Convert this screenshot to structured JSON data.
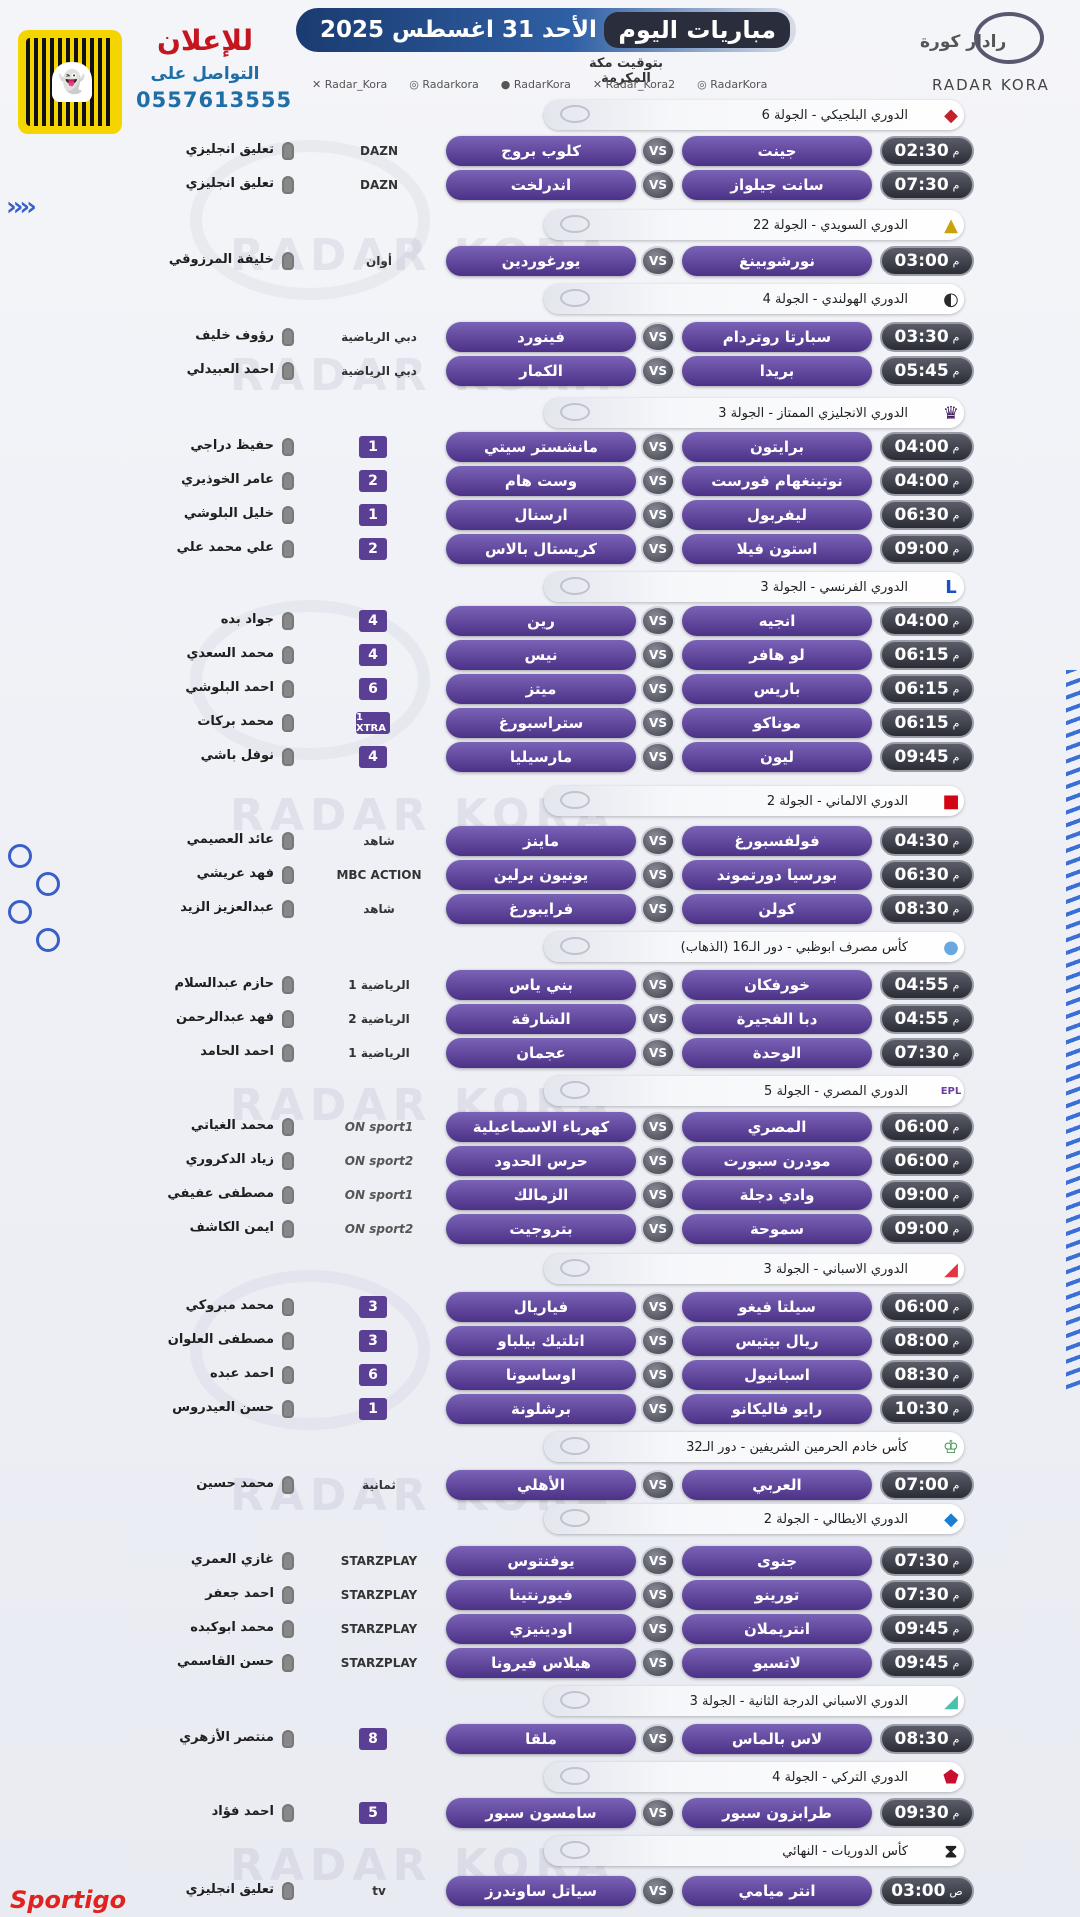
{
  "header": {
    "title": "مباريات اليوم",
    "date": "الأحد 31 اغسطس 2025",
    "timezone": "بتوقيت مكة المكرمة",
    "socials": [
      "Radar_Kora",
      "Radarkora",
      "RadarKora",
      "Radar_Kora2",
      "RadarKora"
    ]
  },
  "brand": {
    "arabic": "رادار كورة",
    "latin": "RADAR KORA",
    "watermark": "RADAR KORA",
    "watermark_ar": "رادار كورة"
  },
  "ad": {
    "title": "للإعلان",
    "subtitle": "التواصل على",
    "phone": "0557613555"
  },
  "footer_brand": "Sportigo",
  "colors": {
    "team_pill": "#5b3f98",
    "time_pill": "#33353e",
    "title_bar": "#1a3b70",
    "ad_red": "#c5151e",
    "ad_blue": "#1f6fa6"
  },
  "vs_label": "VS",
  "time_suffix_pm": "م",
  "time_suffix_am": "ص",
  "sections": [
    {
      "league": "الدوري البلجيكي - الجولة 6",
      "icon": "belgian-league-icon",
      "matches": [
        {
          "time": "02:30",
          "suffix": "م",
          "home": "جينت",
          "away": "كلوب بروج",
          "channel": "DAZN",
          "commentator": "تعليق انجليزي"
        },
        {
          "time": "07:30",
          "suffix": "م",
          "home": "سانت جيلواز",
          "away": "اندرلخت",
          "channel": "DAZN",
          "commentator": "تعليق انجليزي"
        }
      ]
    },
    {
      "league": "الدوري السويدي - الجولة 22",
      "icon": "swedish-league-icon",
      "matches": [
        {
          "time": "03:00",
          "suffix": "م",
          "home": "نورشوبينغ",
          "away": "يورغوردين",
          "channel": "أوان",
          "commentator": "خليفة المرزوقي"
        }
      ]
    },
    {
      "league": "الدوري الهولندي - الجولة 4",
      "icon": "eredivisie-icon",
      "matches": [
        {
          "time": "03:30",
          "suffix": "م",
          "home": "سبارتا روتردام",
          "away": "فينورد",
          "channel": "دبي الرياضية",
          "commentator": "رؤوف خليف"
        },
        {
          "time": "05:45",
          "suffix": "م",
          "home": "بريدا",
          "away": "الكمار",
          "channel": "دبي الرياضية",
          "commentator": "احمد العبيدلي"
        }
      ]
    },
    {
      "league": "الدوري الانجليزي الممتاز - الجولة 3",
      "icon": "premier-league-icon",
      "matches": [
        {
          "time": "04:00",
          "suffix": "م",
          "home": "برايتون",
          "away": "مانشستر سيتي",
          "channel": "1",
          "commentator": "حفيظ دراجي"
        },
        {
          "time": "04:00",
          "suffix": "م",
          "home": "نوتينغهام فورست",
          "away": "وست هام",
          "channel": "2",
          "commentator": "عامر الخوذيري"
        },
        {
          "time": "06:30",
          "suffix": "م",
          "home": "ليفربول",
          "away": "ارسنال",
          "channel": "1",
          "commentator": "خليل البلوشي"
        },
        {
          "time": "09:00",
          "suffix": "م",
          "home": "استون فيلا",
          "away": "كريستال بالاس",
          "channel": "2",
          "commentator": "علي محمد علي"
        }
      ]
    },
    {
      "league": "الدوري الفرنسي - الجولة 3",
      "icon": "ligue1-icon",
      "matches": [
        {
          "time": "04:00",
          "suffix": "م",
          "home": "انجيه",
          "away": "رين",
          "channel": "4",
          "commentator": "جواد بده"
        },
        {
          "time": "06:15",
          "suffix": "م",
          "home": "لو هافر",
          "away": "نيس",
          "channel": "4",
          "commentator": "محمد السعدي"
        },
        {
          "time": "06:15",
          "suffix": "م",
          "home": "باريس",
          "away": "ميتز",
          "channel": "6",
          "commentator": "احمد البلوشي"
        },
        {
          "time": "06:15",
          "suffix": "م",
          "home": "موناكو",
          "away": "ستراسبورغ",
          "channel": "1 XTRA",
          "commentator": "محمد بركات"
        },
        {
          "time": "09:45",
          "suffix": "م",
          "home": "ليون",
          "away": "مارسيليا",
          "channel": "4",
          "commentator": "نوفل باشي"
        }
      ]
    },
    {
      "league": "الدوري الالماني - الجولة 2",
      "icon": "bundesliga-icon",
      "matches": [
        {
          "time": "04:30",
          "suffix": "م",
          "home": "فولفسبورغ",
          "away": "ماينز",
          "channel": "شاهد",
          "commentator": "عائد العصيمي"
        },
        {
          "time": "06:30",
          "suffix": "م",
          "home": "بورسيا دورتموند",
          "away": "يونيون برلين",
          "channel": "MBC ACTION",
          "commentator": "فهد عريشي"
        },
        {
          "time": "08:30",
          "suffix": "م",
          "home": "كولن",
          "away": "فرايبورغ",
          "channel": "شاهد",
          "commentator": "عبدالعزيز الزيد"
        }
      ]
    },
    {
      "league": "كأس مصرف ابوظبي - دور الـ16 (الذهاب)",
      "icon": "adib-cup-icon",
      "matches": [
        {
          "time": "04:55",
          "suffix": "م",
          "home": "خورفكان",
          "away": "بني ياس",
          "channel": "الرياضية 1",
          "commentator": "حازم عبدالسلام"
        },
        {
          "time": "04:55",
          "suffix": "م",
          "home": "دبا الفجيرة",
          "away": "الشارقة",
          "channel": "الرياضية 2",
          "commentator": "فهد عبدالرحمن"
        },
        {
          "time": "07:30",
          "suffix": "م",
          "home": "الوحدة",
          "away": "عجمان",
          "channel": "الرياضية 1",
          "commentator": "احمد الحامد"
        }
      ]
    },
    {
      "league": "الدوري المصري - الجولة 5",
      "icon": "egyptian-league-icon",
      "matches": [
        {
          "time": "06:00",
          "suffix": "م",
          "home": "المصري",
          "away": "كهرباء الاسماعيلية",
          "channel": "ON sport1",
          "commentator": "محمد الغياتي"
        },
        {
          "time": "06:00",
          "suffix": "م",
          "home": "مودرن سبورت",
          "away": "حرس الحدود",
          "channel": "ON sport2",
          "commentator": "زياد الدكروري"
        },
        {
          "time": "09:00",
          "suffix": "م",
          "home": "وادي دجلة",
          "away": "الزمالك",
          "channel": "ON sport1",
          "commentator": "مصطفى عفيفي"
        },
        {
          "time": "09:00",
          "suffix": "م",
          "home": "سموحة",
          "away": "بتروجيت",
          "channel": "ON sport2",
          "commentator": "ايمن الكاشف"
        }
      ]
    },
    {
      "league": "الدوري الاسباني - الجولة 3",
      "icon": "laliga-icon",
      "matches": [
        {
          "time": "06:00",
          "suffix": "م",
          "home": "سيلتا فيغو",
          "away": "فياريال",
          "channel": "3",
          "commentator": "محمد مبروكي"
        },
        {
          "time": "08:00",
          "suffix": "م",
          "home": "ريال بيتيس",
          "away": "اتلتيك بيلباو",
          "channel": "3",
          "commentator": "مصطفى العلوان"
        },
        {
          "time": "08:30",
          "suffix": "م",
          "home": "اسبانيول",
          "away": "اوساسونا",
          "channel": "6",
          "commentator": "احمد عبده"
        },
        {
          "time": "10:30",
          "suffix": "م",
          "home": "رايو فاليكانو",
          "away": "برشلونة",
          "channel": "1",
          "commentator": "حسن العيدروس"
        }
      ]
    },
    {
      "league": "كأس خادم الحرمين الشريفين - دور الـ32",
      "icon": "kings-cup-icon",
      "matches": [
        {
          "time": "07:00",
          "suffix": "م",
          "home": "العربي",
          "away": "الأهلي",
          "channel": "ثمانية",
          "commentator": "محمد حسين"
        }
      ]
    },
    {
      "league": "الدوري الايطالي - الجولة 2",
      "icon": "serie-a-icon",
      "matches": [
        {
          "time": "07:30",
          "suffix": "م",
          "home": "جنوى",
          "away": "يوفنتوس",
          "channel": "STARZPLAY",
          "commentator": "غازي العمري"
        },
        {
          "time": "07:30",
          "suffix": "م",
          "home": "تورينو",
          "away": "فيورنتينا",
          "channel": "STARZPLAY",
          "commentator": "احمد جعفر"
        },
        {
          "time": "09:45",
          "suffix": "م",
          "home": "انتريملان",
          "away": "اودينيزي",
          "channel": "STARZPLAY",
          "commentator": "محمد ابوكبده"
        },
        {
          "time": "09:45",
          "suffix": "م",
          "home": "لاتسيو",
          "away": "هيلاس فيرونا",
          "channel": "STARZPLAY",
          "commentator": "حسن القاسمي"
        }
      ]
    },
    {
      "league": "الدوري الاسباني الدرجة الثانية - الجولة 3",
      "icon": "laliga2-icon",
      "matches": [
        {
          "time": "08:30",
          "suffix": "م",
          "home": "لاس بالماس",
          "away": "ملقا",
          "channel": "8",
          "commentator": "منتصر الأزهري"
        }
      ]
    },
    {
      "league": "الدوري التركي - الجولة 4",
      "icon": "super-lig-icon",
      "matches": [
        {
          "time": "09:30",
          "suffix": "م",
          "home": "طرابزون سبور",
          "away": "سامسون سبور",
          "channel": "5",
          "commentator": "احمد فؤاد"
        }
      ]
    },
    {
      "league": "كأس الدوريات - النهائي",
      "icon": "leagues-cup-icon",
      "matches": [
        {
          "time": "03:00",
          "suffix": "ص",
          "home": "انتر ميامي",
          "away": "سياتل ساوندرز",
          "channel": "tv",
          "commentator": "تعليق انجليزي"
        }
      ]
    }
  ]
}
